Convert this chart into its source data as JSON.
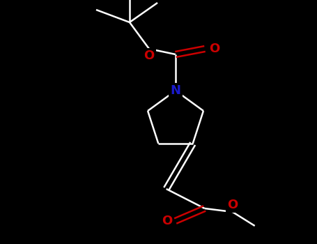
{
  "background_color": "#000000",
  "bond_color": "#ffffff",
  "N_color": "#1a1acc",
  "O_color": "#cc0000",
  "bond_width": 1.8,
  "figsize": [
    4.55,
    3.5
  ],
  "dpi": 100,
  "xlim": [
    0,
    455
  ],
  "ylim": [
    0,
    350
  ]
}
